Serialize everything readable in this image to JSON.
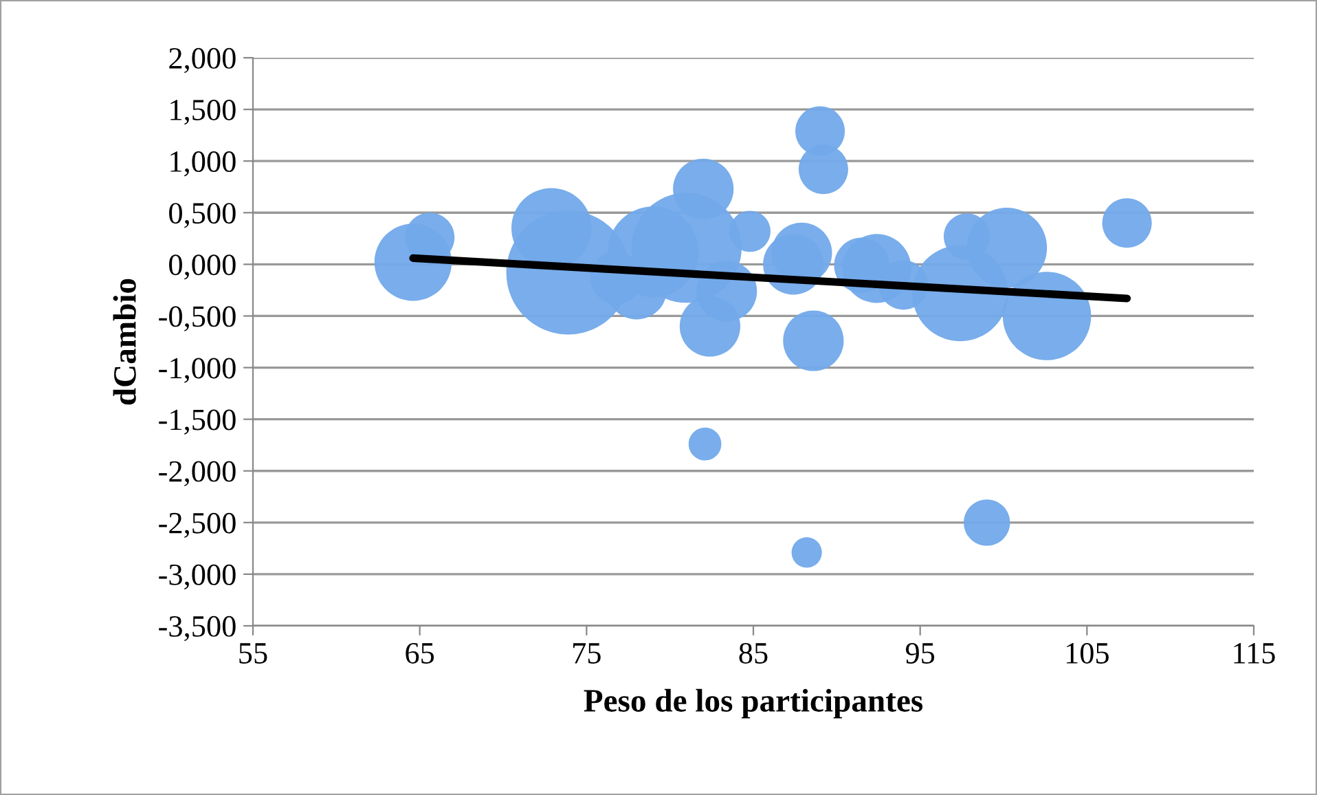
{
  "chart_data": {
    "type": "bubble",
    "xlabel": "Peso de los participantes",
    "ylabel": "dCambio",
    "xlim": [
      55,
      115
    ],
    "xticks": [
      55,
      65,
      75,
      85,
      95,
      105,
      115
    ],
    "ylim": [
      -3.5,
      2
    ],
    "yticks": [
      {
        "value": -3.5,
        "label": "-3,500"
      },
      {
        "value": -3,
        "label": "-3,000"
      },
      {
        "value": -2.5,
        "label": "-2,500"
      },
      {
        "value": -2,
        "label": "-2,000"
      },
      {
        "value": -1.5,
        "label": "-1,500"
      },
      {
        "value": -1,
        "label": "-1,000"
      },
      {
        "value": -0.5,
        "label": "-0,500"
      },
      {
        "value": 0,
        "label": "0,000"
      },
      {
        "value": 0.5,
        "label": "0,500"
      },
      {
        "value": 1,
        "label": "1,000"
      },
      {
        "value": 1.5,
        "label": "1,500"
      },
      {
        "value": 2,
        "label": "2,000"
      }
    ],
    "grid": "y",
    "legend": false,
    "series": [
      {
        "color": "#72a9ea",
        "x": [
          64.6,
          65.6,
          72.9,
          73.9,
          79.0,
          81.0,
          76.8,
          78.0,
          82.0,
          84.8,
          83.4,
          82.4,
          82.1,
          89.0,
          89.2,
          87.4,
          87.9,
          88.6,
          88.2,
          91.5,
          92.4,
          94.0,
          97.4,
          97.8,
          100.2,
          102.6,
          107.4,
          99.0
        ],
        "values": [
          0.02,
          0.26,
          0.35,
          -0.08,
          0.12,
          0.16,
          -0.13,
          -0.24,
          0.73,
          0.32,
          -0.26,
          -0.6,
          -1.74,
          1.29,
          0.92,
          0.0,
          0.11,
          -0.74,
          -2.79,
          -0.01,
          -0.04,
          -0.2,
          -0.28,
          0.27,
          0.16,
          -0.5,
          0.4,
          -2.5
        ],
        "sizes": [
          0.39,
          0.16,
          0.42,
          1,
          0.54,
          0.79,
          0.18,
          0.24,
          0.24,
          0.11,
          0.24,
          0.24,
          0.07,
          0.16,
          0.16,
          0.24,
          0.24,
          0.24,
          0.06,
          0.2,
          0.31,
          0.16,
          0.6,
          0.14,
          0.42,
          0.51,
          0.16,
          0.14
        ]
      },
      {
        "type": "line",
        "color": "#000000",
        "x": [
          64.6,
          107.4
        ],
        "values": [
          0.06,
          -0.33
        ]
      }
    ]
  }
}
